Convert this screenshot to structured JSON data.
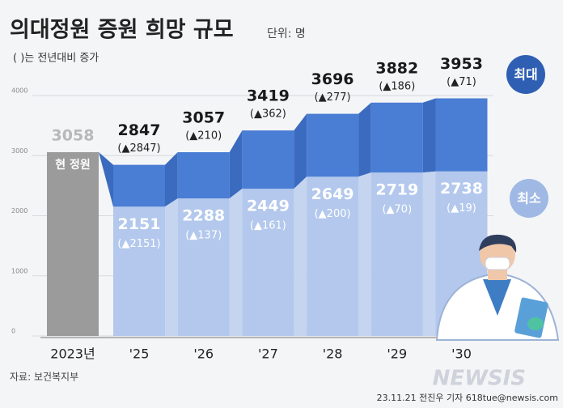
{
  "chart_data": {
    "type": "range-band",
    "title": "의대정원 증원 희망 규모",
    "unit": "단위: 명",
    "subtitle": "( )는 전년대비 증가",
    "categories": [
      "2023년",
      "'25",
      "'26",
      "'27",
      "'28",
      "'29",
      "'30"
    ],
    "current_value": 3058,
    "current_label": "현 정원",
    "current_color": "#9b9b9b",
    "series": [
      {
        "name": "최대",
        "color": "#4a7dd4",
        "values": [
          null,
          2847,
          3057,
          3419,
          3696,
          3882,
          3953
        ],
        "change_labels": [
          null,
          "(▲2847)",
          "(▲210)",
          "(▲362)",
          "(▲277)",
          "(▲186)",
          "(▲71)"
        ]
      },
      {
        "name": "최소",
        "color": "#b3c8ec",
        "values": [
          null,
          2151,
          2288,
          2449,
          2649,
          2719,
          2738
        ],
        "change_labels": [
          null,
          "(▲2151)",
          "(▲137)",
          "(▲161)",
          "(▲200)",
          "(▲70)",
          "(▲19)"
        ]
      }
    ],
    "ylim": [
      0,
      4000
    ],
    "yticks": [
      0,
      1000,
      2000,
      3000,
      4000
    ],
    "grid": true,
    "source": "자료: 보건복지부",
    "credit": "23.11.21 전진우 기자 618tue@newsis.com",
    "watermark": "NEWSIS"
  }
}
